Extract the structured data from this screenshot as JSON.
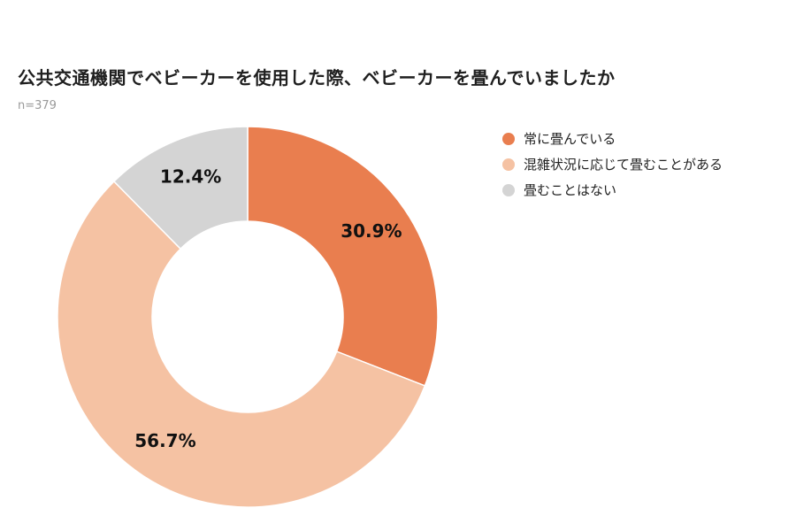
{
  "chart_data": {
    "type": "pie",
    "donut": true,
    "title": "公共交通機関でベビーカーを使用した際、ベビーカーを畳んでいましたか",
    "subtitle": "n=379",
    "categories": [
      "常に畳んでいる",
      "混雑状況に応じて畳むことがある",
      "畳むことはない"
    ],
    "values": [
      30.9,
      56.7,
      12.4
    ],
    "value_labels": [
      "30.9%",
      "56.7%",
      "12.4%"
    ],
    "colors": [
      "#e97e4f",
      "#f5c2a3",
      "#d4d4d4"
    ],
    "legend_position": "top-right"
  }
}
